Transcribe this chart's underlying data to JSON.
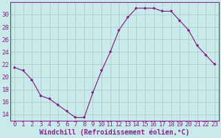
{
  "x": [
    0,
    1,
    2,
    3,
    4,
    5,
    6,
    7,
    8,
    9,
    10,
    11,
    12,
    13,
    14,
    15,
    16,
    17,
    18,
    19,
    20,
    21,
    22,
    23
  ],
  "y": [
    21.5,
    21.0,
    19.5,
    17.0,
    16.5,
    15.5,
    14.5,
    13.5,
    13.5,
    17.5,
    21.0,
    24.0,
    27.5,
    29.5,
    31.0,
    31.0,
    31.0,
    30.5,
    30.5,
    29.0,
    27.5,
    25.0,
    23.5,
    22.0
  ],
  "line_color": "#882288",
  "marker": "P",
  "bg_color": "#c8eaea",
  "grid_color": "#aacccc",
  "xlabel": "Windchill (Refroidissement éolien,°C)",
  "xlabel_color": "#882288",
  "tick_color": "#882288",
  "spine_color": "#882288",
  "ylim": [
    13,
    32
  ],
  "xlim": [
    -0.5,
    23.5
  ],
  "yticks": [
    14,
    16,
    18,
    20,
    22,
    24,
    26,
    28,
    30
  ],
  "xticks": [
    0,
    1,
    2,
    3,
    4,
    5,
    6,
    7,
    8,
    9,
    10,
    11,
    12,
    13,
    14,
    15,
    16,
    17,
    18,
    19,
    20,
    21,
    22,
    23
  ],
  "tick_fontsize": 6.5,
  "xlabel_fontsize": 7.0
}
